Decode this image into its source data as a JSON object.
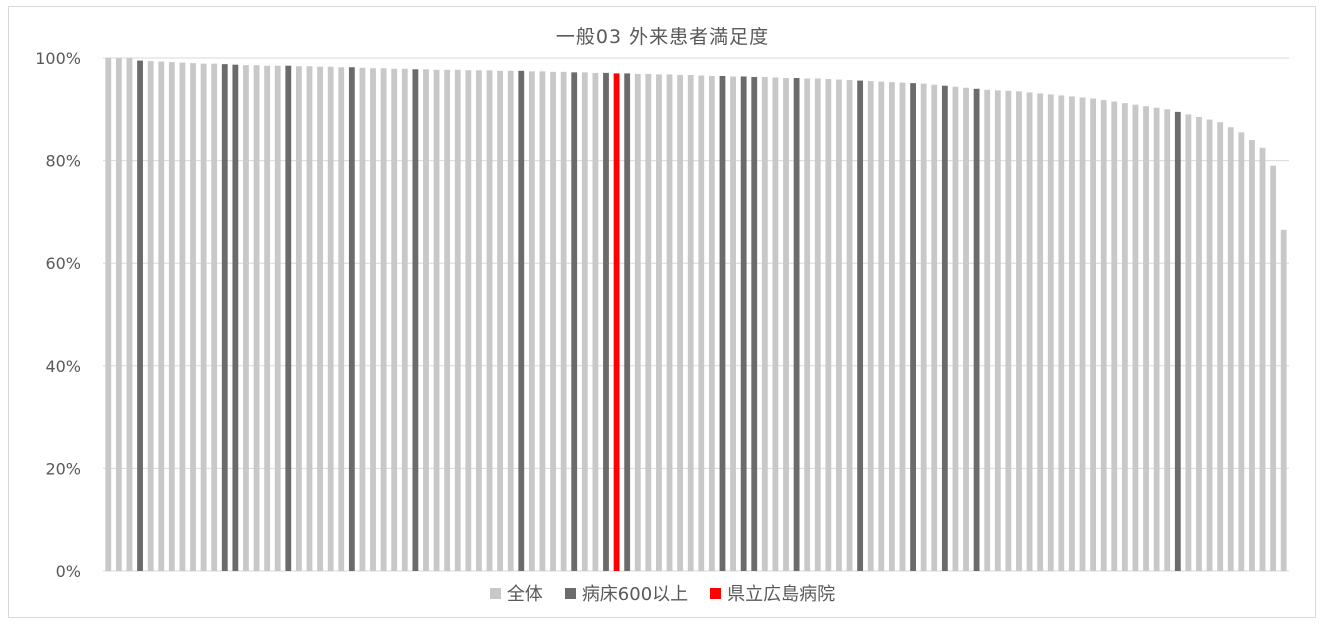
{
  "chart_data": {
    "type": "bar",
    "title": "一般03 外来患者満足度",
    "xlabel": "",
    "ylabel": "",
    "ylim": [
      0,
      1
    ],
    "y_ticks": [
      "0%",
      "20%",
      "40%",
      "60%",
      "80%",
      "100%"
    ],
    "grid": true,
    "legend_position": "bottom",
    "series": [
      {
        "name": "全体",
        "color": "#c8c8c8"
      },
      {
        "name": "病床600以上",
        "color": "#6b6b6b"
      },
      {
        "name": "県立広島病院",
        "color": "#ff0000"
      }
    ],
    "values": [
      1.0,
      1.0,
      1.0,
      0.995,
      0.994,
      0.993,
      0.992,
      0.991,
      0.99,
      0.989,
      0.989,
      0.988,
      0.987,
      0.986,
      0.986,
      0.985,
      0.985,
      0.985,
      0.984,
      0.984,
      0.983,
      0.983,
      0.982,
      0.982,
      0.981,
      0.98,
      0.98,
      0.979,
      0.979,
      0.978,
      0.978,
      0.977,
      0.977,
      0.977,
      0.976,
      0.976,
      0.976,
      0.975,
      0.975,
      0.975,
      0.974,
      0.974,
      0.973,
      0.973,
      0.972,
      0.972,
      0.971,
      0.971,
      0.97,
      0.97,
      0.969,
      0.969,
      0.968,
      0.968,
      0.967,
      0.967,
      0.966,
      0.965,
      0.965,
      0.964,
      0.964,
      0.963,
      0.963,
      0.962,
      0.961,
      0.961,
      0.96,
      0.96,
      0.959,
      0.958,
      0.957,
      0.956,
      0.955,
      0.954,
      0.953,
      0.952,
      0.951,
      0.95,
      0.948,
      0.946,
      0.944,
      0.942,
      0.94,
      0.938,
      0.937,
      0.936,
      0.935,
      0.933,
      0.931,
      0.929,
      0.927,
      0.925,
      0.923,
      0.921,
      0.918,
      0.915,
      0.912,
      0.909,
      0.906,
      0.903,
      0.9,
      0.895,
      0.89,
      0.885,
      0.88,
      0.875,
      0.865,
      0.855,
      0.84,
      0.825,
      0.79,
      0.665
    ],
    "categories_group": [
      0,
      0,
      0,
      1,
      0,
      0,
      0,
      0,
      0,
      0,
      0,
      1,
      1,
      0,
      0,
      0,
      0,
      1,
      0,
      0,
      0,
      0,
      0,
      1,
      0,
      0,
      0,
      0,
      0,
      1,
      0,
      0,
      0,
      0,
      0,
      0,
      0,
      0,
      0,
      1,
      0,
      0,
      0,
      0,
      1,
      0,
      0,
      1,
      2,
      1,
      0,
      0,
      0,
      0,
      0,
      0,
      0,
      0,
      1,
      0,
      1,
      1,
      0,
      0,
      0,
      1,
      0,
      0,
      0,
      0,
      0,
      1,
      0,
      0,
      0,
      0,
      1,
      0,
      0,
      1,
      0,
      0,
      1,
      0,
      0,
      0,
      0,
      0,
      0,
      0,
      0,
      0,
      0,
      0,
      0,
      0,
      0,
      0,
      0,
      0,
      0,
      1,
      0,
      0,
      0,
      0,
      0,
      0,
      0,
      0,
      0,
      0
    ]
  }
}
